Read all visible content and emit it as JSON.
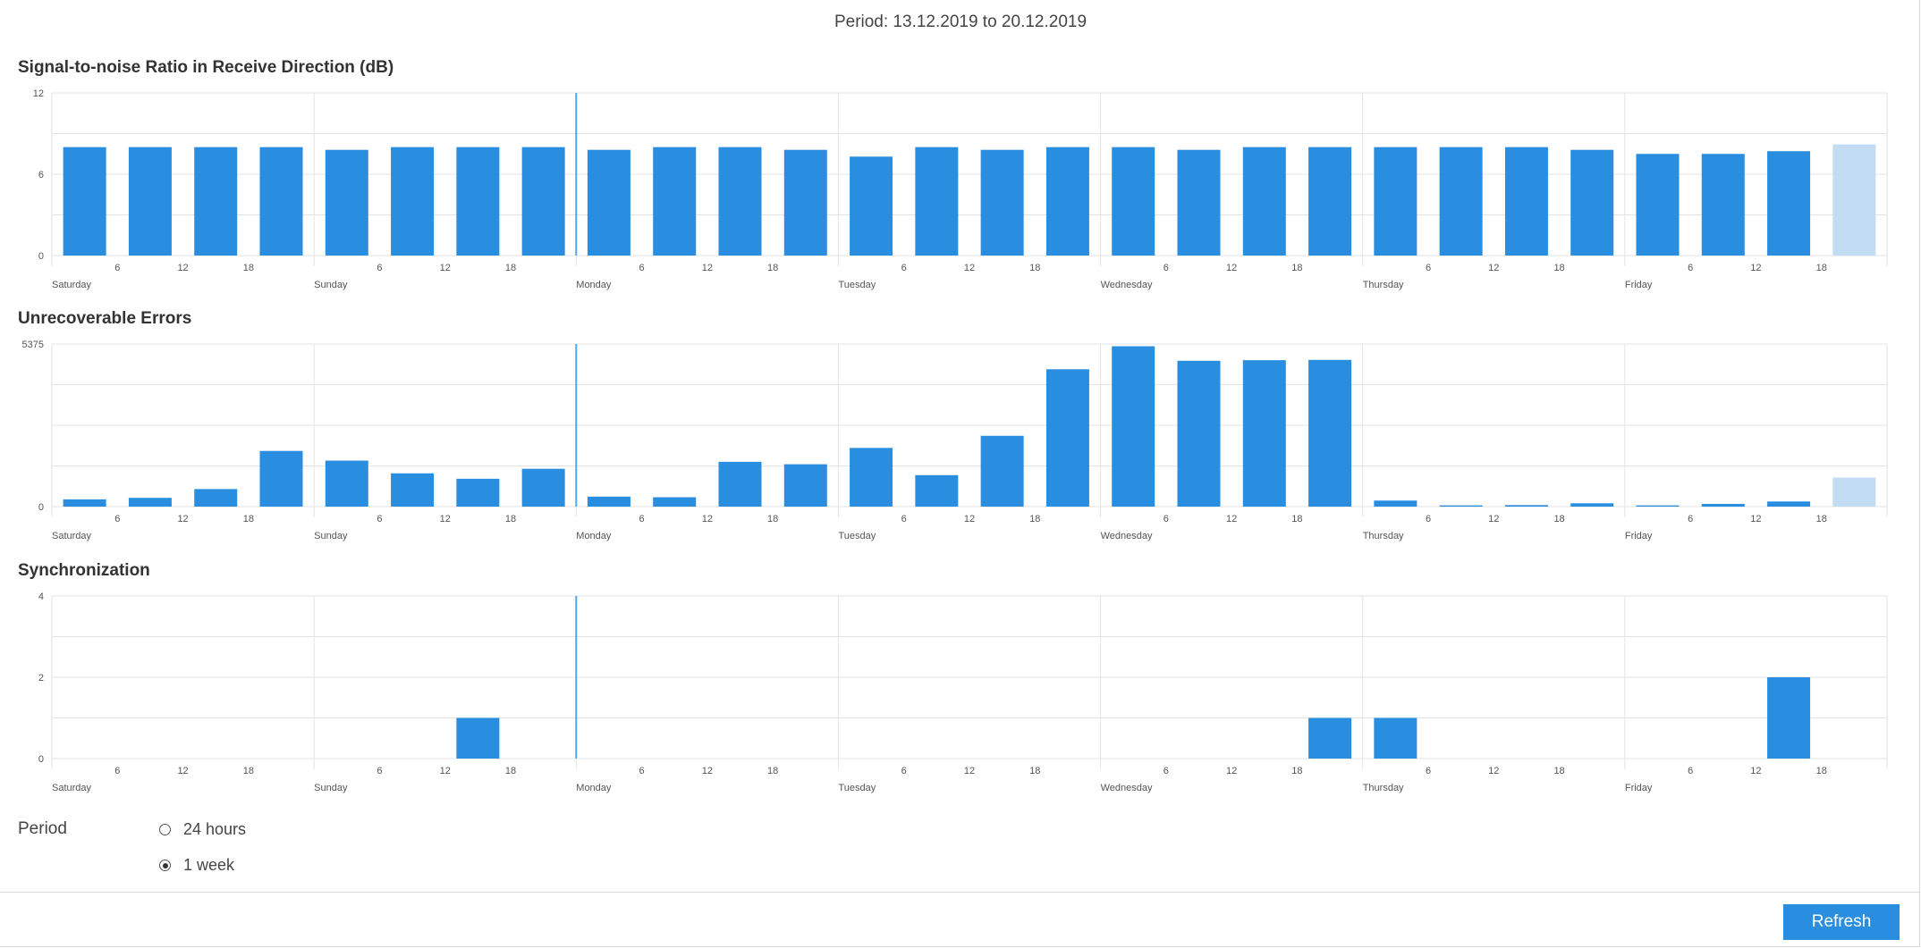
{
  "header": {
    "period_text": "Period: 13.12.2019 to 20.12.2019"
  },
  "colors": {
    "bar": "#2a8ee0",
    "bar_partial": "#c2ddf3",
    "grid": "#e3e3e3",
    "marker": "#4ea8ea"
  },
  "hour_ticks": [
    "6",
    "12",
    "18"
  ],
  "days": [
    "Saturday",
    "Sunday",
    "Monday",
    "Tuesday",
    "Wednesday",
    "Thursday",
    "Friday"
  ],
  "chart_data": [
    {
      "type": "bar",
      "title": "Signal-to-noise Ratio in Receive Direction (dB)",
      "ylim": [
        0,
        12
      ],
      "yticks": [
        "0",
        "6",
        "12"
      ],
      "values": [
        8.0,
        8.0,
        8.0,
        8.0,
        7.8,
        8.0,
        8.0,
        8.0,
        7.8,
        8.0,
        8.0,
        7.8,
        7.3,
        8.0,
        7.8,
        8.0,
        8.0,
        7.8,
        8.0,
        8.0,
        8.0,
        8.0,
        8.0,
        7.8,
        7.5,
        7.5,
        7.7,
        8.2
      ],
      "partial_last": true
    },
    {
      "type": "bar",
      "title": "Unrecoverable Errors",
      "ylim": [
        0,
        5375
      ],
      "yticks": [
        "0",
        "5375"
      ],
      "values": [
        240,
        290,
        580,
        1840,
        1520,
        1100,
        920,
        1250,
        330,
        310,
        1480,
        1400,
        1940,
        1040,
        2340,
        4540,
        5300,
        4820,
        4840,
        4850,
        200,
        40,
        50,
        110,
        40,
        90,
        170,
        960
      ],
      "partial_last": true
    },
    {
      "type": "bar",
      "title": "Synchronization",
      "ylim": [
        0,
        4
      ],
      "yticks": [
        "0",
        "2",
        "4"
      ],
      "values": [
        0,
        0,
        0,
        0,
        0,
        0,
        1,
        0,
        0,
        0,
        0,
        0,
        0,
        0,
        0,
        0,
        0,
        0,
        0,
        1,
        1,
        0,
        0,
        0,
        0,
        0,
        2,
        0
      ],
      "partial_last": false
    }
  ],
  "period_selector": {
    "label": "Period",
    "options": [
      {
        "label": "24 hours",
        "checked": false
      },
      {
        "label": "1 week",
        "checked": true
      }
    ]
  },
  "footer": {
    "refresh_label": "Refresh"
  }
}
